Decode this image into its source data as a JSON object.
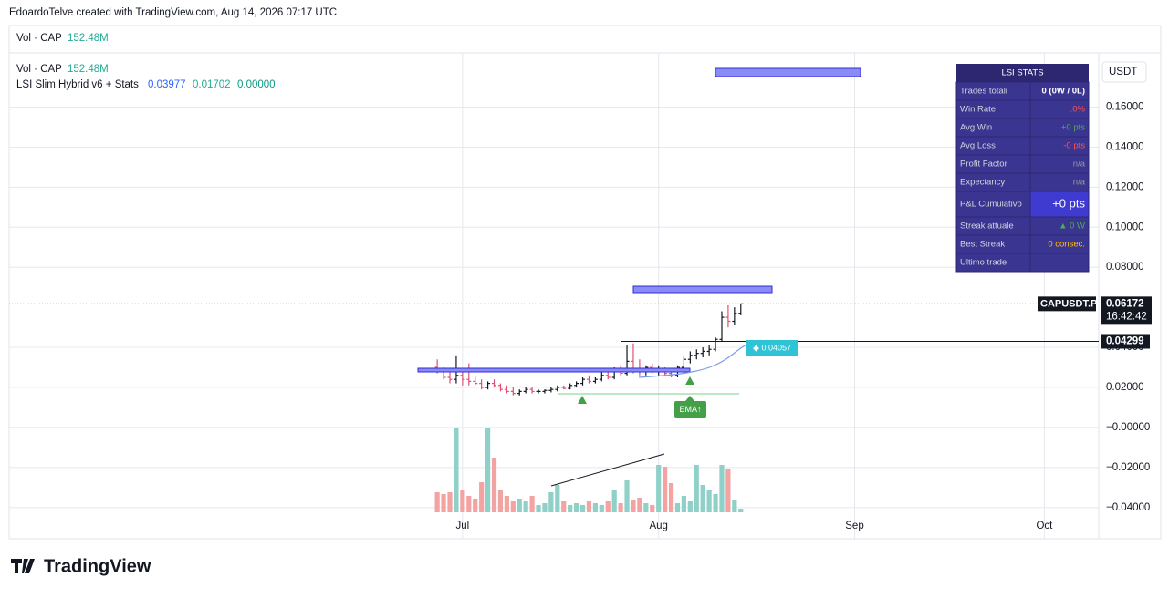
{
  "chart_data": {
    "type": "candlestick",
    "header": "EdoardoTelve created with TradingView.com, Aug 14, 2026 07:17 UTC",
    "volume_pane": {
      "name": "Vol · CAP",
      "value": "152.48M"
    },
    "overlay_volume": {
      "name": "Vol · CAP",
      "value": "152.48M"
    },
    "indicator": {
      "name": "LSI Slim Hybrid v6 + Stats",
      "values": [
        "0.03977",
        "0.01702",
        "0.00000"
      ]
    },
    "currency": "USDT",
    "symbol": "CAPUSDT.P",
    "last_price": 0.06172,
    "countdown": "16:42:42",
    "level": 0.04299,
    "ema_label": "◆ 0.04057",
    "ema_tag": "EMA↑",
    "footer": "TradingView",
    "xlim": [
      -71.7,
      100.6
    ],
    "xticks": [
      {
        "value": 0,
        "label": "Jul"
      },
      {
        "value": 31,
        "label": "Aug"
      },
      {
        "value": 62,
        "label": "Sep"
      },
      {
        "value": 92,
        "label": "Oct"
      }
    ],
    "ylim": [
      -0.0556,
      0.1871
    ],
    "yticks": [
      {
        "value": 0.16,
        "label": "0.16000"
      },
      {
        "value": 0.14,
        "label": "0.14000"
      },
      {
        "value": 0.12,
        "label": "0.12000"
      },
      {
        "value": 0.1,
        "label": "0.10000"
      },
      {
        "value": 0.08,
        "label": "0.08000"
      },
      {
        "value": 0.04,
        "label": "0.04000"
      },
      {
        "value": 0.02,
        "label": "0.02000"
      },
      {
        "value": 0,
        "label": "−0.00000"
      },
      {
        "value": -0.02,
        "label": "−0.02000"
      },
      {
        "value": -0.04,
        "label": "−0.04000"
      }
    ],
    "vlim": [
      0,
      100
    ],
    "up_color": "#131722",
    "down_color": "#e0506f",
    "vol_up_color": "#8fd1c8",
    "vol_down_color": "#f4a3a3",
    "x": [
      -4,
      -3,
      -2,
      -1,
      0,
      1,
      2,
      3,
      4,
      5,
      6,
      7,
      8,
      9,
      10,
      11,
      12,
      13,
      14,
      15,
      16,
      17,
      18,
      19,
      20,
      21,
      22,
      23,
      24,
      25,
      26,
      27,
      28,
      29,
      30,
      31,
      32,
      33,
      34,
      35,
      36,
      37,
      38,
      39,
      40,
      41,
      42,
      43,
      44
    ],
    "open": [
      0.03,
      0.028,
      0.025,
      0.024,
      0.026,
      0.024,
      0.023,
      0.022,
      0.02,
      0.022,
      0.021,
      0.019,
      0.018,
      0.017,
      0.018,
      0.019,
      0.018,
      0.018,
      0.0185,
      0.019,
      0.02,
      0.0195,
      0.021,
      0.022,
      0.024,
      0.023,
      0.024,
      0.026,
      0.025,
      0.028,
      0.027,
      0.033,
      0.029,
      0.028,
      0.03,
      0.028,
      0.029,
      0.027,
      0.026,
      0.03,
      0.034,
      0.036,
      0.037,
      0.038,
      0.039,
      0.044,
      0.055,
      0.053,
      0.057
    ],
    "high": [
      0.034,
      0.03,
      0.028,
      0.036,
      0.028,
      0.032,
      0.026,
      0.024,
      0.023,
      0.024,
      0.022,
      0.021,
      0.02,
      0.019,
      0.02,
      0.02,
      0.019,
      0.019,
      0.02,
      0.021,
      0.021,
      0.022,
      0.023,
      0.025,
      0.026,
      0.025,
      0.028,
      0.028,
      0.03,
      0.031,
      0.041,
      0.042,
      0.034,
      0.031,
      0.032,
      0.031,
      0.03,
      0.029,
      0.031,
      0.036,
      0.038,
      0.039,
      0.04,
      0.041,
      0.045,
      0.058,
      0.061,
      0.06,
      0.0617
    ],
    "low": [
      0.027,
      0.024,
      0.022,
      0.022,
      0.021,
      0.021,
      0.021,
      0.019,
      0.019,
      0.02,
      0.018,
      0.017,
      0.016,
      0.016,
      0.017,
      0.017,
      0.017,
      0.017,
      0.0175,
      0.018,
      0.019,
      0.019,
      0.02,
      0.021,
      0.022,
      0.022,
      0.023,
      0.024,
      0.024,
      0.026,
      0.026,
      0.027,
      0.026,
      0.026,
      0.027,
      0.026,
      0.026,
      0.025,
      0.025,
      0.029,
      0.032,
      0.034,
      0.035,
      0.036,
      0.038,
      0.043,
      0.05,
      0.051,
      0.056
    ],
    "close": [
      0.028,
      0.025,
      0.024,
      0.026,
      0.024,
      0.023,
      0.022,
      0.02,
      0.022,
      0.021,
      0.019,
      0.018,
      0.017,
      0.018,
      0.019,
      0.018,
      0.018,
      0.0185,
      0.019,
      0.02,
      0.0195,
      0.021,
      0.022,
      0.024,
      0.023,
      0.024,
      0.026,
      0.025,
      0.028,
      0.027,
      0.033,
      0.029,
      0.028,
      0.03,
      0.028,
      0.029,
      0.027,
      0.026,
      0.03,
      0.034,
      0.036,
      0.037,
      0.038,
      0.039,
      0.044,
      0.055,
      0.053,
      0.057,
      0.06172
    ],
    "volume": [
      22,
      20,
      22,
      92,
      24,
      18,
      15,
      33,
      92,
      60,
      25,
      18,
      12,
      15,
      12,
      18,
      8,
      10,
      22,
      30,
      12,
      8,
      10,
      8,
      12,
      10,
      8,
      12,
      25,
      10,
      35,
      14,
      16,
      10,
      8,
      52,
      50,
      32,
      10,
      18,
      12,
      52,
      30,
      24,
      20,
      52,
      48,
      14,
      4
    ],
    "stats": {
      "title": "LSI STATS",
      "rows": [
        [
          "Trades totali",
          "0  (0W / 0L)"
        ],
        [
          "Win Rate",
          ".0%"
        ],
        [
          "Avg Win",
          "+0 pts"
        ],
        [
          "Avg Loss",
          "-0 pts"
        ],
        [
          "Profit Factor",
          "n/a"
        ],
        [
          "Expectancy",
          "n/a"
        ],
        [
          "P&L Cumulativo",
          "+0 pts"
        ],
        [
          "Streak attuale",
          "▲ 0 W"
        ],
        [
          "Best Streak",
          "0 consec."
        ],
        [
          "Ultimo trade",
          "–"
        ]
      ]
    }
  }
}
